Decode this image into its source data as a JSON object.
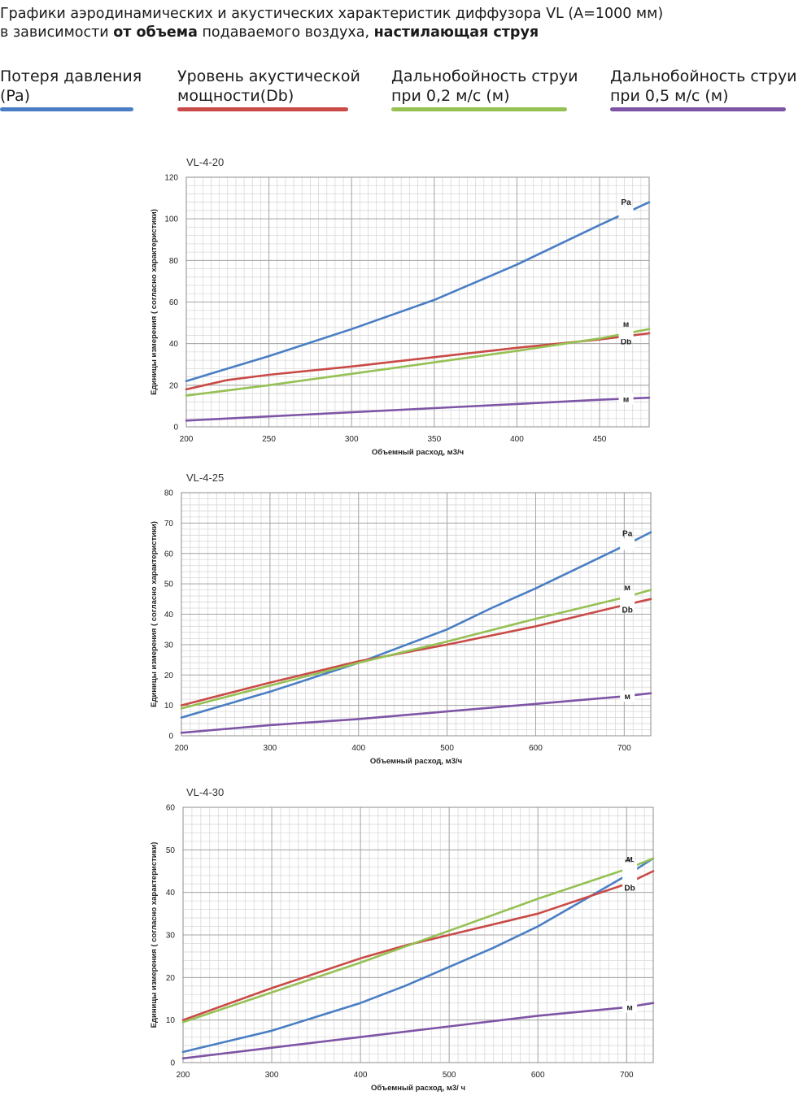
{
  "heading": {
    "line1": "Графики аэродинамических и акустических характеристик  диффузора VL (А=1000 мм)",
    "line2_a": "в зависимости ",
    "line2_b": "от объема",
    "line2_c": " подаваемого воздуха, ",
    "line2_d": "настилающая струя"
  },
  "legend": [
    {
      "line1": "Потеря давления",
      "line2": "(Pa)",
      "color": "#4a7ec4"
    },
    {
      "line1": "Уровень акустической",
      "line2": "мощности(Db)",
      "color": "#c94a46"
    },
    {
      "line1": "Дальнобойность струи",
      "line2": "при 0,2 м/с (м)",
      "color": "#95c153"
    },
    {
      "line1": "Дальнобойность струи",
      "line2": "при 0,5 м/с (м)",
      "color": "#7e55a6"
    }
  ],
  "chart_data": [
    {
      "type": "line",
      "title": "VL-4-20",
      "xlabel": "Объемный расход, м3/ч",
      "ylabel": "Единицы измерения ( согласно характеристики)",
      "xlim": [
        200,
        480
      ],
      "ylim": [
        0,
        120
      ],
      "xticks": [
        200,
        250,
        300,
        350,
        400,
        450
      ],
      "yticks": [
        0,
        20,
        40,
        60,
        80,
        100,
        120
      ],
      "grid": true,
      "series": [
        {
          "label": "Pa",
          "color": "#4a7ec4",
          "x": [
            200,
            250,
            300,
            350,
            400,
            450,
            480
          ],
          "y": [
            22,
            34,
            47,
            61,
            78,
            97,
            108
          ]
        },
        {
          "label": "Db",
          "color": "#c94a46",
          "x": [
            200,
            225,
            250,
            300,
            350,
            400,
            450,
            480
          ],
          "y": [
            18,
            22.5,
            25,
            29,
            33.5,
            38,
            42,
            45
          ]
        },
        {
          "label": "м",
          "color": "#95c153",
          "x": [
            200,
            250,
            300,
            350,
            400,
            450,
            480
          ],
          "y": [
            15,
            20,
            25.5,
            31,
            36.5,
            42.5,
            47
          ]
        },
        {
          "label": "м",
          "color": "#7e55a6",
          "x": [
            200,
            250,
            300,
            350,
            400,
            450,
            480
          ],
          "y": [
            3,
            5,
            7,
            9,
            11,
            13,
            14
          ]
        }
      ]
    },
    {
      "type": "line",
      "title": "VL-4-25",
      "xlabel": "Объемный расход, м3/ч",
      "ylabel": "Единицы измерения ( согласно характеристики)",
      "xlim": [
        200,
        730
      ],
      "ylim": [
        0,
        80
      ],
      "xticks": [
        200,
        300,
        400,
        500,
        600,
        700
      ],
      "yticks": [
        0,
        10,
        20,
        30,
        40,
        50,
        60,
        70,
        80
      ],
      "grid": true,
      "series": [
        {
          "label": "Pa",
          "color": "#4a7ec4",
          "x": [
            200,
            300,
            400,
            450,
            500,
            550,
            600,
            650,
            700,
            730
          ],
          "y": [
            6,
            14.5,
            24,
            29.5,
            35,
            42,
            48.5,
            55.5,
            62.5,
            67
          ]
        },
        {
          "label": "Db",
          "color": "#c94a46",
          "x": [
            200,
            300,
            400,
            500,
            600,
            700,
            730
          ],
          "y": [
            10,
            17.5,
            24.5,
            30,
            36,
            43,
            45
          ]
        },
        {
          "label": "м",
          "color": "#95c153",
          "x": [
            200,
            300,
            400,
            500,
            600,
            700,
            730
          ],
          "y": [
            9,
            16.5,
            24,
            31,
            38.5,
            45.5,
            48
          ]
        },
        {
          "label": "м",
          "color": "#7e55a6",
          "x": [
            200,
            300,
            400,
            500,
            600,
            700,
            730
          ],
          "y": [
            1,
            3.5,
            5.5,
            8,
            10.5,
            13,
            14
          ]
        }
      ]
    },
    {
      "type": "line",
      "title": "VL-4-30",
      "xlabel": "Объемный расход, м3/ ч",
      "ylabel": "Единицы измерения ( согласно характеристики)",
      "xlim": [
        200,
        730
      ],
      "ylim": [
        0,
        60
      ],
      "xticks": [
        200,
        300,
        400,
        500,
        600,
        700
      ],
      "yticks": [
        0,
        10,
        20,
        30,
        40,
        50,
        60
      ],
      "grid": true,
      "series": [
        {
          "label": "Pa",
          "color": "#4a7ec4",
          "x": [
            200,
            300,
            400,
            450,
            500,
            550,
            600,
            650,
            700,
            730
          ],
          "y": [
            2.5,
            7.5,
            14,
            18,
            22.5,
            27,
            32,
            38,
            44,
            48
          ]
        },
        {
          "label": "Db",
          "color": "#c94a46",
          "x": [
            200,
            300,
            400,
            450,
            500,
            600,
            700,
            730
          ],
          "y": [
            10,
            17.5,
            24.5,
            27.5,
            30,
            35,
            42,
            45
          ]
        },
        {
          "label": "м",
          "color": "#95c153",
          "x": [
            200,
            300,
            400,
            500,
            600,
            700,
            730
          ],
          "y": [
            9.5,
            16.5,
            23.5,
            31,
            38.5,
            45.5,
            48
          ]
        },
        {
          "label": "м",
          "color": "#7e55a6",
          "x": [
            200,
            300,
            400,
            500,
            600,
            700,
            730
          ],
          "y": [
            1,
            3.5,
            6,
            8.5,
            11,
            13,
            14
          ]
        }
      ]
    }
  ]
}
